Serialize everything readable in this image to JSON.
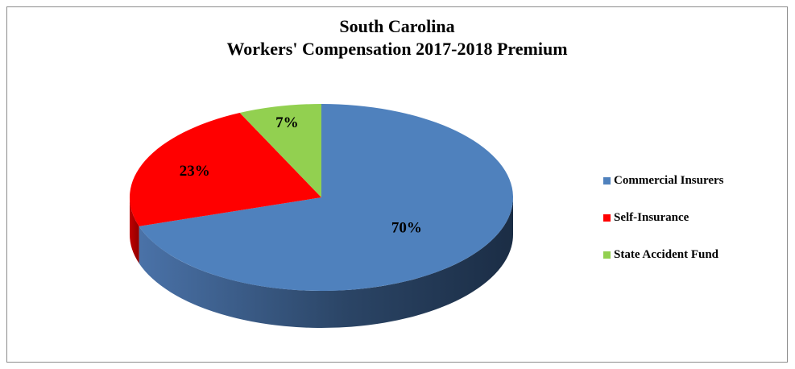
{
  "chart_data": {
    "type": "pie",
    "title": "South Carolina",
    "subtitle": "Workers'  Compensation 2017-2018 Premium",
    "categories": [
      "Commercial Insurers",
      "Self-Insurance",
      "State Accident Fund"
    ],
    "values": [
      70,
      23,
      7
    ],
    "value_labels": [
      "70%",
      "23%",
      "7%"
    ],
    "colors": [
      "#4f81bd",
      "#ff0000",
      "#92d050"
    ],
    "legend_position": "right",
    "style": "3d"
  }
}
